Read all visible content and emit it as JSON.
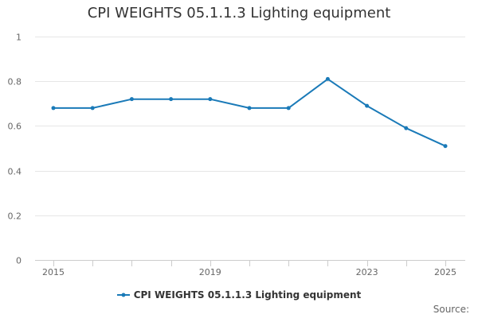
{
  "title": "CPI WEIGHTS 05.1.1.3 Lighting equipment",
  "legend": {
    "label": "CPI WEIGHTS 05.1.1.3 Lighting equipment",
    "icon": "line-with-dot-icon"
  },
  "credits": {
    "text": "Source:"
  },
  "colors": {
    "series": "#1a7ab8",
    "grid": "#e6e6e6",
    "axis_text": "#666666",
    "title": "#333333"
  },
  "chart_data": {
    "type": "line",
    "title": "CPI WEIGHTS 05.1.1.3 Lighting equipment",
    "xlabel": "",
    "ylabel": "",
    "x": [
      2015,
      2016,
      2017,
      2018,
      2019,
      2020,
      2021,
      2022,
      2023,
      2024,
      2025
    ],
    "x_tick_labels": [
      "2015",
      "2019",
      "2023",
      "2025"
    ],
    "x_tick_values": [
      2015,
      2019,
      2023,
      2025
    ],
    "y_tick_values": [
      0,
      0.2,
      0.4,
      0.6,
      0.8,
      1
    ],
    "y_tick_labels": [
      "0",
      "0.2",
      "0.4",
      "0.6",
      "0.8",
      "1"
    ],
    "ylim": [
      0,
      1
    ],
    "grid": true,
    "legend_position": "bottom",
    "series": [
      {
        "name": "CPI WEIGHTS 05.1.1.3 Lighting equipment",
        "values": [
          0.68,
          0.68,
          0.72,
          0.72,
          0.72,
          0.68,
          0.68,
          0.81,
          0.69,
          0.59,
          0.51
        ]
      }
    ]
  }
}
